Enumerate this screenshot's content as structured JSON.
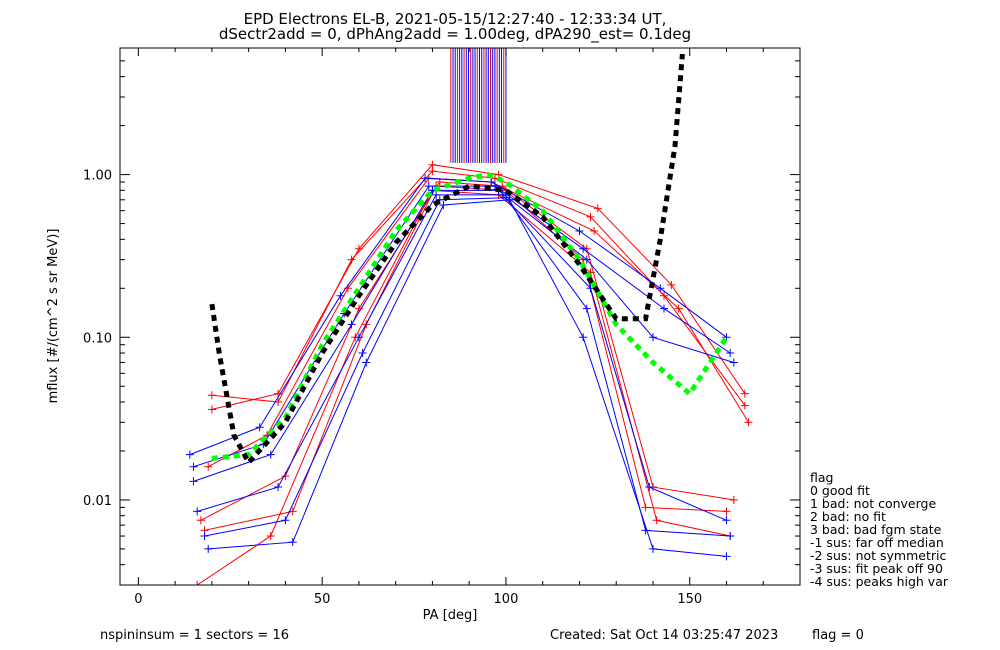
{
  "chart_data": {
    "type": "line",
    "title": "EPD Electrons EL-B, 2021-05-15/12:27:40 - 12:33:34 UT,",
    "subtitle": "dSectr2add = 0, dPhAng2add = 1.00deg, dPA290_est=   0.1deg",
    "xlabel": "PA [deg]",
    "ylabel": "mflux [#/(cm^2 s sr MeV)]",
    "xlim": [
      -5,
      180
    ],
    "ylim": [
      0.003,
      6
    ],
    "yscale": "log",
    "xticks": [
      0,
      50,
      100,
      150
    ],
    "xtick_labels": [
      "0",
      "50",
      "100",
      "150"
    ],
    "yticks": [
      0.01,
      0.1,
      1.0
    ],
    "ytick_labels": [
      "0.01",
      "0.10",
      "1.00"
    ],
    "colors": {
      "blue": "#0000ff",
      "red": "#ff0000",
      "green": "#00ff00",
      "black": "#000000"
    },
    "series": [
      {
        "color": "red",
        "x": [
          20,
          38,
          60,
          80,
          98,
          125,
          145,
          165
        ],
        "y": [
          0.036,
          0.045,
          0.35,
          1.15,
          1.0,
          0.62,
          0.21,
          0.045
        ]
      },
      {
        "color": "red",
        "x": [
          20,
          38,
          58,
          80,
          97,
          123,
          143,
          165
        ],
        "y": [
          0.044,
          0.04,
          0.3,
          1.05,
          0.95,
          0.55,
          0.18,
          0.038
        ]
      },
      {
        "color": "red",
        "x": [
          19,
          35,
          57,
          79,
          96,
          124,
          147,
          166
        ],
        "y": [
          0.016,
          0.025,
          0.2,
          0.95,
          0.9,
          0.45,
          0.15,
          0.03
        ]
      },
      {
        "color": "red",
        "x": [
          17,
          40,
          60,
          82,
          99,
          122,
          140,
          162
        ],
        "y": [
          0.0075,
          0.014,
          0.15,
          0.9,
          0.85,
          0.35,
          0.012,
          0.01
        ]
      },
      {
        "color": "red",
        "x": [
          18,
          42,
          62,
          81,
          100,
          121,
          138,
          160
        ],
        "y": [
          0.0065,
          0.0085,
          0.12,
          0.85,
          0.8,
          0.3,
          0.009,
          0.0085
        ]
      },
      {
        "color": "red",
        "x": [
          16,
          36,
          59,
          80,
          98,
          123,
          141,
          161
        ],
        "y": [
          0.003,
          0.006,
          0.1,
          0.8,
          0.75,
          0.25,
          0.0075,
          0.006
        ]
      },
      {
        "color": "blue",
        "x": [
          14,
          33,
          55,
          78,
          96,
          120,
          142,
          160
        ],
        "y": [
          0.019,
          0.028,
          0.18,
          0.95,
          0.9,
          0.45,
          0.2,
          0.1
        ]
      },
      {
        "color": "blue",
        "x": [
          15,
          34,
          56,
          79,
          97,
          121,
          143,
          161
        ],
        "y": [
          0.016,
          0.022,
          0.14,
          0.85,
          0.85,
          0.35,
          0.15,
          0.08
        ]
      },
      {
        "color": "blue",
        "x": [
          15,
          36,
          58,
          80,
          98,
          122,
          140,
          162
        ],
        "y": [
          0.013,
          0.019,
          0.12,
          0.8,
          0.8,
          0.3,
          0.1,
          0.07
        ]
      },
      {
        "color": "blue",
        "x": [
          16,
          38,
          60,
          81,
          99,
          123,
          139,
          160
        ],
        "y": [
          0.0085,
          0.012,
          0.1,
          0.75,
          0.75,
          0.2,
          0.012,
          0.0075
        ]
      },
      {
        "color": "blue",
        "x": [
          18,
          40,
          61,
          82,
          100,
          122,
          138,
          161
        ],
        "y": [
          0.006,
          0.0075,
          0.08,
          0.7,
          0.72,
          0.15,
          0.0065,
          0.006
        ]
      },
      {
        "color": "blue",
        "x": [
          19,
          42,
          62,
          83,
          101,
          121,
          140,
          160
        ],
        "y": [
          0.005,
          0.0055,
          0.07,
          0.65,
          0.7,
          0.1,
          0.005,
          0.0045
        ]
      }
    ],
    "spikes": {
      "x_from": 85,
      "x_to": 100,
      "y_bottom": 1.18,
      "y_top": 6
    },
    "fits": [
      {
        "name": "green",
        "x": [
          20,
          30,
          40,
          50,
          60,
          70,
          80,
          90,
          95,
          100,
          110,
          120,
          130,
          140,
          150,
          160
        ],
        "y": [
          0.018,
          0.019,
          0.032,
          0.09,
          0.2,
          0.45,
          0.8,
          0.95,
          1.0,
          0.9,
          0.6,
          0.3,
          0.12,
          0.07,
          0.045,
          0.1
        ]
      },
      {
        "name": "black",
        "x": [
          20,
          22,
          26,
          30,
          40,
          50,
          60,
          70,
          80,
          90,
          100,
          110,
          120,
          130,
          138,
          142,
          146,
          148
        ],
        "y": [
          0.16,
          0.08,
          0.025,
          0.017,
          0.03,
          0.08,
          0.18,
          0.38,
          0.65,
          0.85,
          0.8,
          0.55,
          0.28,
          0.13,
          0.13,
          0.4,
          1.5,
          5.5
        ]
      }
    ]
  },
  "footer": {
    "left": "nspininsum =  1  sectors = 16",
    "created": "Created: Sat Oct 14 03:25:47 2023",
    "flag": "flag = 0"
  },
  "flag_legend": {
    "title": "flag",
    "items": [
      " 0 good fit",
      " 1 bad: not converge",
      " 2 bad: no fit",
      " 3 bad: bad fgm state",
      "-1 sus: far off median",
      "-2 sus: not symmetric",
      "-3 sus: fit peak off 90",
      "-4 sus: peaks high var"
    ]
  }
}
